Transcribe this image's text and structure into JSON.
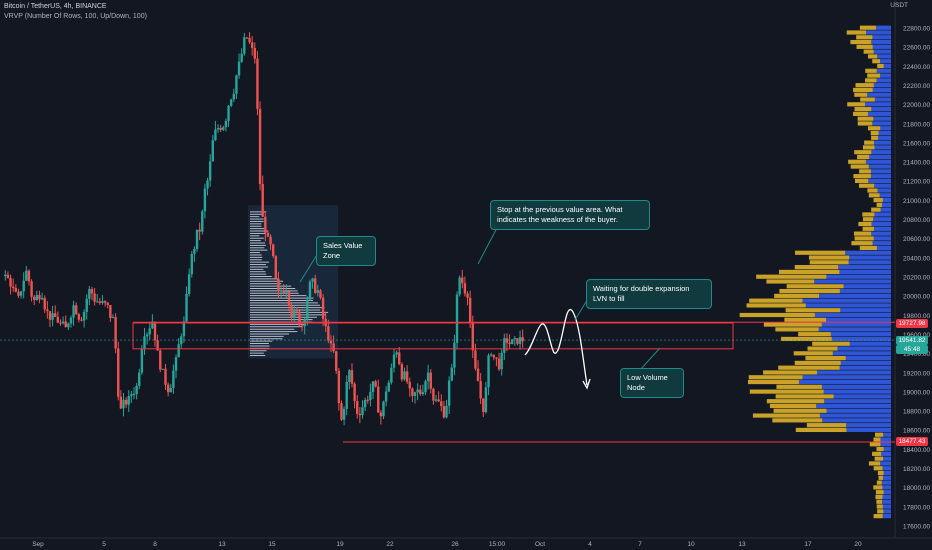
{
  "header": {
    "symbol_line": "Bitcoin / TetherUS, 4h, BINANCE",
    "indicator_line": "VRVP (Number Of Rows, 100, Up/Down, 100)"
  },
  "colors": {
    "background": "#131722",
    "up": "#26a69a",
    "down": "#ef5350",
    "zone": "#f23645",
    "vp_up": "#c9a227",
    "vp_down": "#2f56d6",
    "callout_bg": "#103a3d",
    "callout_border": "#1c8c8a"
  },
  "annotations": {
    "sales_zone": "Sales Value Zone",
    "stop_note": "Stop at the previous value area. What indicates the weakness of the buyer.",
    "double_expansion": "Waiting for double expansion LVN to fill",
    "lvn": "Low Volume Node"
  },
  "price_tags": {
    "upper": "19727.98",
    "current": "19541.82",
    "countdown": "45:48",
    "lower": "18477.43"
  },
  "chart_data": {
    "type": "candlestick",
    "title": "Bitcoin / TetherUS, 4h, BINANCE",
    "y_axis_unit": "USDT",
    "ylim": [
      17500,
      23000
    ],
    "y_ticks": [
      17600,
      17800,
      18000,
      18200,
      18400,
      18600,
      18800,
      19000,
      19200,
      19400,
      19600,
      19800,
      20000,
      20200,
      20400,
      20600,
      20800,
      21000,
      21200,
      21400,
      21600,
      21800,
      22000,
      22200,
      22400,
      22600,
      22800
    ],
    "y_tick_labels": [
      "17600.00",
      "17800.00",
      "18000.00",
      "18200.00",
      "18400.00",
      "18600.00",
      "18800.00",
      "19000.00",
      "19200.00",
      "19400.00",
      "19600.00",
      "19800.00",
      "20000.00",
      "20200.00",
      "20400.00",
      "20600.00",
      "20800.00",
      "21000.00",
      "21200.00",
      "21400.00",
      "21600.00",
      "21800.00",
      "22000.00",
      "22200.00",
      "22400.00",
      "22600.00",
      "22800.00"
    ],
    "x_ticks": [
      "Sep",
      "5",
      "8",
      "13",
      "15",
      "19",
      "22",
      "26",
      "15:00",
      "Oct",
      "4",
      "7",
      "10",
      "13",
      "17",
      "20"
    ],
    "close_path": [
      20150,
      19950,
      20250,
      19950,
      20050,
      19800,
      19750,
      19650,
      19900,
      19800,
      20050,
      19950,
      19900,
      19750,
      18800,
      18900,
      19050,
      19650,
      19750,
      19300,
      19050,
      19300,
      19700,
      20400,
      20700,
      21200,
      21700,
      21800,
      22100,
      22400,
      22700,
      22500,
      20800,
      20500,
      20000,
      20100,
      19800,
      19700,
      20100,
      20050,
      19650,
      19400,
      18700,
      19200,
      18800,
      18900,
      19050,
      18750,
      19100,
      19450,
      19150,
      18900,
      19000,
      19200,
      18900,
      18800,
      19200,
      20200,
      20050,
      19200,
      18850,
      19450,
      19300,
      19550,
      19500,
      19550
    ],
    "series": [
      {
        "name": "Sales Value Zone box",
        "range": [
          19350,
          20850
        ]
      }
    ],
    "zones": {
      "upper_box": [
        19450,
        19720
      ],
      "lower_line": 18477.43,
      "upper_line": 19727.98,
      "current_price": 19541.82
    },
    "volume_profile_levels": [
      17600,
      22800
    ]
  }
}
